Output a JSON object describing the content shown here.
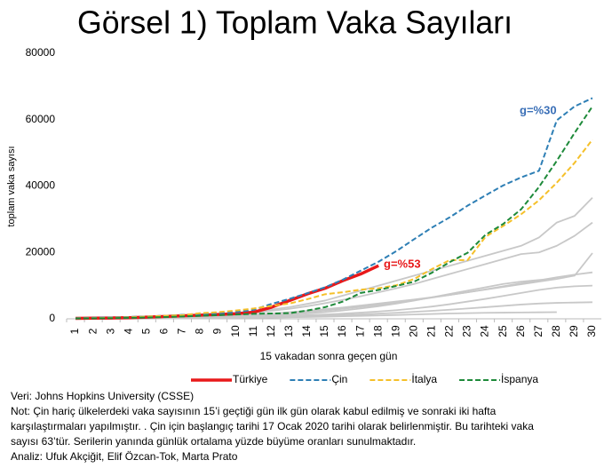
{
  "chart_data": {
    "type": "line",
    "title": "Görsel 1) Toplam Vaka Sayıları",
    "y_label": "toplam vaka sayısı",
    "x_label": "15 vakadan sonra geçen gün",
    "categories": [
      "1",
      "2",
      "3",
      "4",
      "5",
      "6",
      "7",
      "8",
      "9",
      "10",
      "11",
      "12",
      "13",
      "14",
      "15",
      "16",
      "17",
      "18",
      "19",
      "20",
      "21",
      "22",
      "23",
      "24",
      "25",
      "26",
      "27",
      "28",
      "29",
      "30"
    ],
    "ylim": [
      0,
      80000
    ],
    "yticks": [
      0,
      20000,
      40000,
      60000,
      80000
    ],
    "grid": false,
    "series": [
      {
        "color": "#c8c8c8",
        "values": [
          100,
          150,
          200,
          300,
          400,
          600,
          800,
          1000,
          1200,
          1500,
          2000,
          2800,
          3500,
          4500,
          5500,
          7000,
          8500,
          10000,
          11500,
          13000,
          14500,
          16000,
          17500,
          19000,
          20500,
          22000,
          24500,
          29000,
          31000,
          36500
        ]
      },
      {
        "color": "#c8c8c8",
        "values": [
          80,
          120,
          180,
          250,
          350,
          500,
          700,
          900,
          1100,
          1400,
          1800,
          2400,
          3000,
          3800,
          4700,
          5700,
          6800,
          8000,
          9200,
          10500,
          12000,
          13500,
          15000,
          16500,
          18000,
          19500,
          20000,
          22000,
          25000,
          29000
        ]
      },
      {
        "color": "#c8c8c8",
        "values": [
          60,
          90,
          130,
          180,
          250,
          350,
          450,
          600,
          800,
          1000,
          1300,
          1600,
          2000,
          2400,
          2900,
          3400,
          4000,
          4600,
          5200,
          5800,
          6500,
          7200,
          8000,
          8800,
          9600,
          10400,
          11200,
          12000,
          13000,
          19800
        ]
      },
      {
        "color": "#c8c8c8",
        "values": [
          50,
          80,
          120,
          170,
          230,
          300,
          400,
          500,
          650,
          800,
          1000,
          1300,
          1600,
          2000,
          2500,
          3000,
          3600,
          4200,
          4900,
          5600,
          6400,
          7200,
          8000,
          8900,
          9800,
          10700,
          11600,
          12500,
          13300,
          14000
        ]
      },
      {
        "color": "#c8c8c8",
        "values": [
          40,
          60,
          90,
          130,
          180,
          240,
          320,
          420,
          540,
          680,
          850,
          1050,
          1300,
          1600,
          2000,
          2500,
          3100,
          3800,
          4600,
          5500,
          6500,
          7500,
          8500,
          9500,
          10500,
          11200,
          11700,
          12000,
          null,
          null
        ]
      },
      {
        "color": "#c8c8c8",
        "values": [
          30,
          50,
          70,
          100,
          140,
          190,
          250,
          320,
          400,
          500,
          620,
          760,
          920,
          1100,
          1300,
          1550,
          1850,
          2200,
          2600,
          3100,
          3700,
          4400,
          5200,
          6000,
          6900,
          7800,
          8700,
          9400,
          9800,
          10000
        ]
      },
      {
        "color": "#c8c8c8",
        "values": [
          20,
          30,
          45,
          65,
          90,
          120,
          160,
          210,
          270,
          340,
          420,
          520,
          640,
          780,
          940,
          1120,
          1320,
          1550,
          1800,
          2100,
          2400,
          2750,
          3100,
          3500,
          3900,
          4300,
          4600,
          4800,
          4900,
          5000
        ]
      },
      {
        "color": "#c8c8c8",
        "values": [
          15,
          25,
          35,
          50,
          70,
          95,
          125,
          160,
          200,
          250,
          310,
          380,
          460,
          550,
          650,
          760,
          880,
          1010,
          1150,
          1300,
          1450,
          1600,
          1700,
          1800,
          1850,
          1900,
          1950,
          2000,
          null,
          null
        ]
      },
      {
        "name": "Türkiye",
        "color": "#e8191a",
        "dash": false,
        "values": [
          150,
          200,
          250,
          350,
          500,
          700,
          900,
          1100,
          1300,
          1550,
          2000,
          3500,
          5500,
          7500,
          9200,
          11500,
          13500,
          16000,
          null,
          null,
          null,
          null,
          null,
          null,
          null,
          null,
          null,
          null,
          null,
          null
        ]
      },
      {
        "name": "Çin",
        "color": "#2e7fb5",
        "dash": true,
        "values": [
          200,
          300,
          400,
          550,
          700,
          900,
          1200,
          1400,
          1700,
          2000,
          2700,
          4500,
          6000,
          7700,
          9500,
          11800,
          14500,
          17200,
          20400,
          24000,
          27500,
          30600,
          34100,
          37200,
          40200,
          42600,
          44600,
          59800,
          64000,
          66500
        ]
      },
      {
        "name": "İtalya",
        "color": "#f5c02a",
        "dash": true,
        "values": [
          150,
          200,
          300,
          450,
          650,
          900,
          1100,
          1700,
          2000,
          2500,
          3100,
          3900,
          4600,
          5900,
          7400,
          8000,
          8800,
          9200,
          10100,
          12000,
          15000,
          17700,
          17700,
          24700,
          28000,
          31500,
          35700,
          41000,
          47000,
          54000
        ]
      },
      {
        "name": "İspanya",
        "color": "#1e8a3a",
        "dash": true,
        "values": [
          100,
          150,
          200,
          300,
          400,
          550,
          700,
          900,
          1100,
          1300,
          1500,
          1600,
          1700,
          2500,
          3500,
          5200,
          7800,
          8700,
          9900,
          11200,
          13900,
          17100,
          19900,
          25300,
          28600,
          33000,
          39700,
          47600,
          56000,
          64000
        ]
      }
    ],
    "annotations": [
      {
        "text": "g=%53",
        "color": "#e8191a"
      },
      {
        "text": "g=%30",
        "color": "#3a6fb7"
      }
    ],
    "notes": [
      "Veri: Johns Hopkins University (CSSE)",
      "Not: Çin hariç ülkelerdeki vaka sayısının 15’i geçtiği gün ilk gün olarak kabul edilmiş ve sonraki iki hafta",
      "karşılaştırmaları yapılmıştır. . Çin için başlangıç tarihi 17 Ocak 2020 tarihi olarak belirlenmiştir. Bu tarihteki vaka",
      "sayısı 63’tür. Serilerin yanında günlük ortalama yüzde büyüme oranları sunulmaktadır.",
      "Analiz: Ufuk Akçiğit, Elif Özcan-Tok, Marta Prato"
    ]
  }
}
